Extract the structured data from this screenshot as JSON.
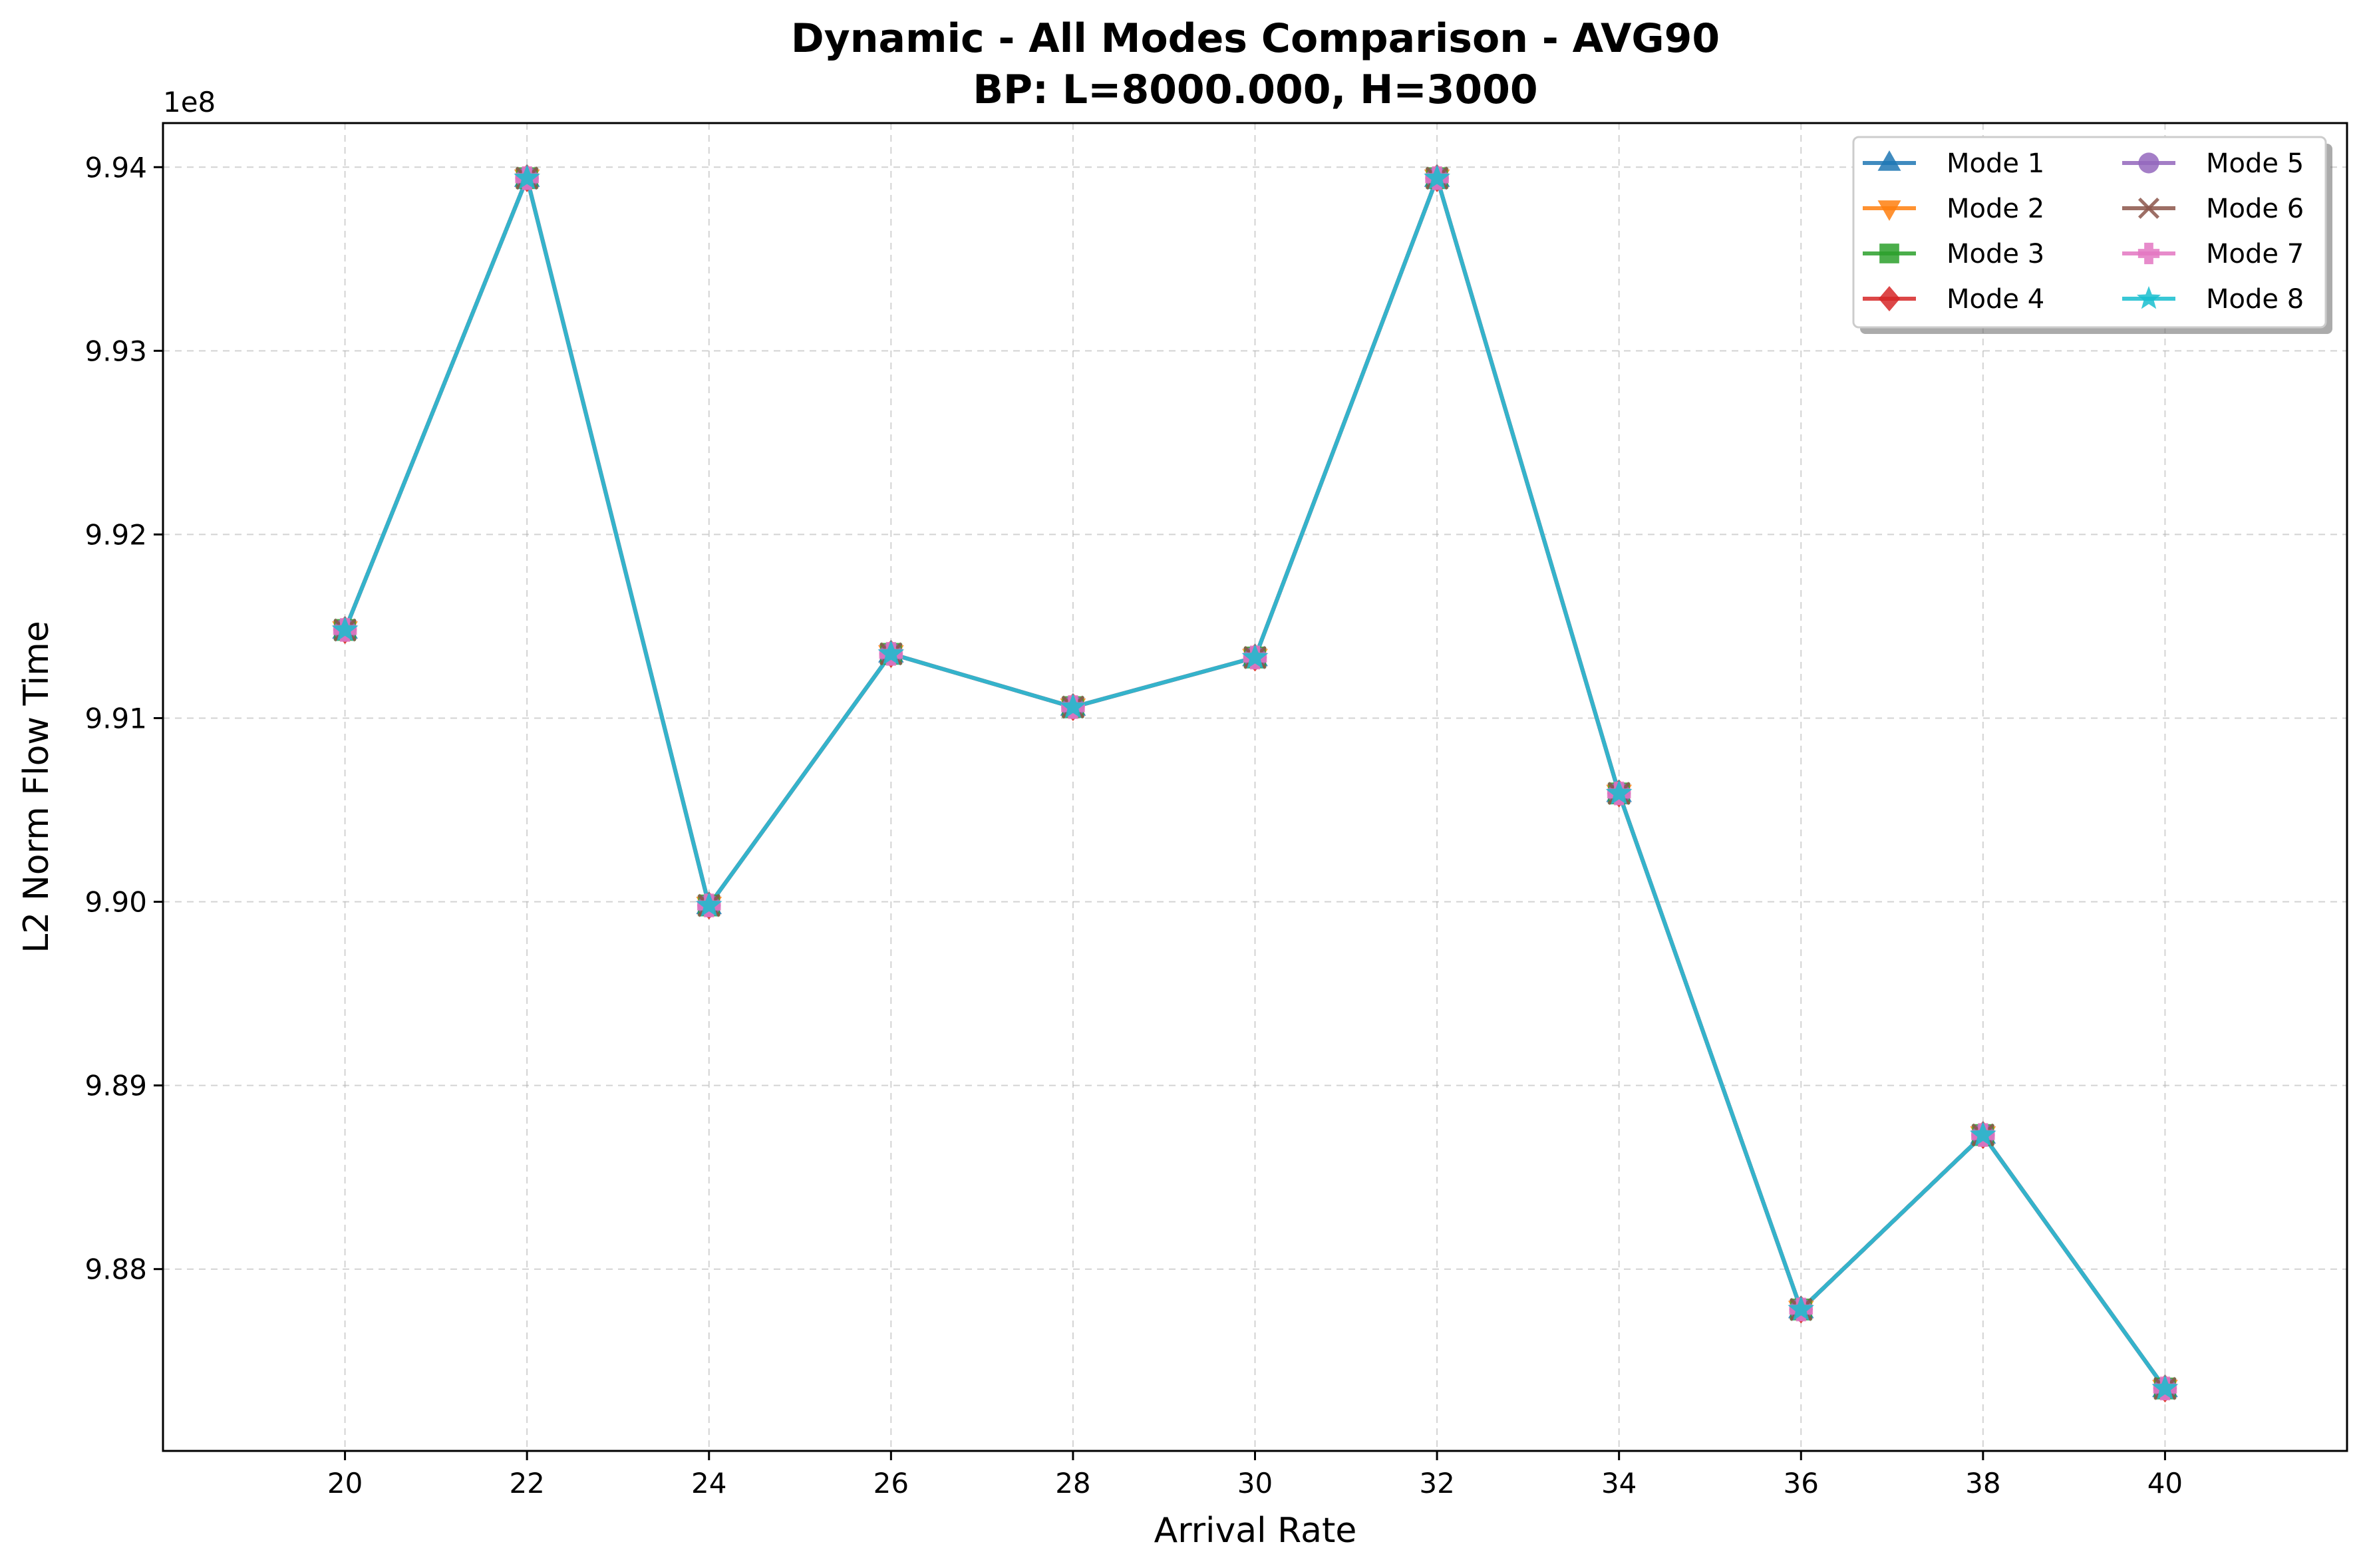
{
  "chart_data": {
    "type": "line",
    "title": "Dynamic - All Modes Comparison - AVG90",
    "subtitle": "BP: L=8000.000, H=3000",
    "xlabel": "Arrival Rate",
    "ylabel": "L2 Norm Flow Time",
    "y_offset_label": "1e8",
    "x": [
      20,
      22,
      24,
      26,
      28,
      30,
      32,
      34,
      36,
      38,
      40
    ],
    "x_ticks": [
      20,
      22,
      24,
      26,
      28,
      30,
      32,
      34,
      36,
      38,
      40
    ],
    "x_tick_labels": [
      "20",
      "22",
      "24",
      "26",
      "28",
      "30",
      "32",
      "34",
      "36",
      "38",
      "40"
    ],
    "y_ticks": [
      9.88,
      9.89,
      9.9,
      9.91,
      9.92,
      9.93,
      9.94
    ],
    "y_tick_labels": [
      "9.88",
      "9.89",
      "9.90",
      "9.91",
      "9.92",
      "9.93",
      "9.94"
    ],
    "xlim": [
      18,
      42
    ],
    "ylim": [
      9.8701,
      9.9424
    ],
    "y_scale_factor": 100000000,
    "grid": true,
    "legend_position": "top-right",
    "legend_columns": 2,
    "series": [
      {
        "name": "Mode 1",
        "color": "#1f77b4",
        "marker": "triangle-up",
        "values": [
          9.9148,
          9.9394,
          9.8998,
          9.9135,
          9.9106,
          9.9133,
          9.9394,
          9.9059,
          9.8778,
          9.8873,
          9.8735
        ]
      },
      {
        "name": "Mode 2",
        "color": "#ff7f0e",
        "marker": "triangle-down",
        "values": [
          9.9148,
          9.9394,
          9.8998,
          9.9135,
          9.9106,
          9.9133,
          9.9394,
          9.9059,
          9.8778,
          9.8873,
          9.8735
        ]
      },
      {
        "name": "Mode 3",
        "color": "#2ca02c",
        "marker": "square",
        "values": [
          9.9148,
          9.9394,
          9.8998,
          9.9135,
          9.9106,
          9.9133,
          9.9394,
          9.9059,
          9.8778,
          9.8873,
          9.8735
        ]
      },
      {
        "name": "Mode 4",
        "color": "#d62728",
        "marker": "diamond",
        "values": [
          9.9148,
          9.9394,
          9.8998,
          9.9135,
          9.9106,
          9.9133,
          9.9394,
          9.9059,
          9.8778,
          9.8873,
          9.8735
        ]
      },
      {
        "name": "Mode 5",
        "color": "#9467bd",
        "marker": "circle",
        "values": [
          9.9148,
          9.9394,
          9.8998,
          9.9135,
          9.9106,
          9.9133,
          9.9394,
          9.9059,
          9.8778,
          9.8873,
          9.8735
        ]
      },
      {
        "name": "Mode 6",
        "color": "#8c564b",
        "marker": "x",
        "values": [
          9.9148,
          9.9394,
          9.8998,
          9.9135,
          9.9106,
          9.9133,
          9.9394,
          9.9059,
          9.8778,
          9.8873,
          9.8735
        ]
      },
      {
        "name": "Mode 7",
        "color": "#e377c2",
        "marker": "plus",
        "values": [
          9.9148,
          9.9394,
          9.8998,
          9.9135,
          9.9106,
          9.9133,
          9.9394,
          9.9059,
          9.8778,
          9.8873,
          9.8735
        ]
      },
      {
        "name": "Mode 8",
        "color": "#17becf",
        "marker": "star",
        "values": [
          9.9148,
          9.9394,
          9.8998,
          9.9135,
          9.9106,
          9.9133,
          9.9394,
          9.9059,
          9.8778,
          9.8873,
          9.8735
        ]
      }
    ]
  }
}
